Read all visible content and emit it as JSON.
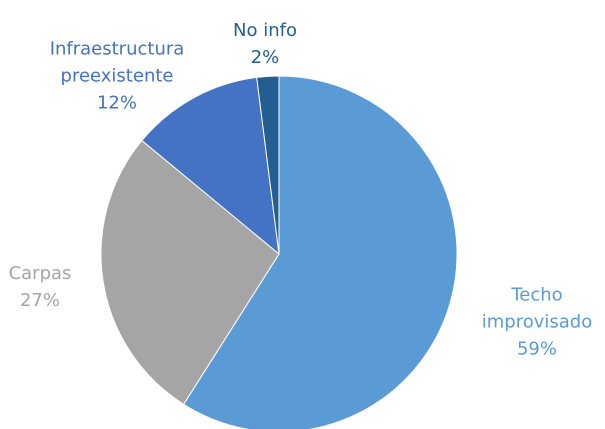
{
  "chart_data": {
    "type": "pie",
    "categories": [
      "Techo improvisado",
      "Carpas",
      "Infraestructura preexistente",
      "No info"
    ],
    "values": [
      59,
      27,
      12,
      2
    ],
    "value_labels": [
      "59%",
      "27%",
      "12%",
      "2%"
    ],
    "colors": [
      "#5b9bd5",
      "#a5a5a5",
      "#4472c4",
      "#255e91"
    ]
  }
}
